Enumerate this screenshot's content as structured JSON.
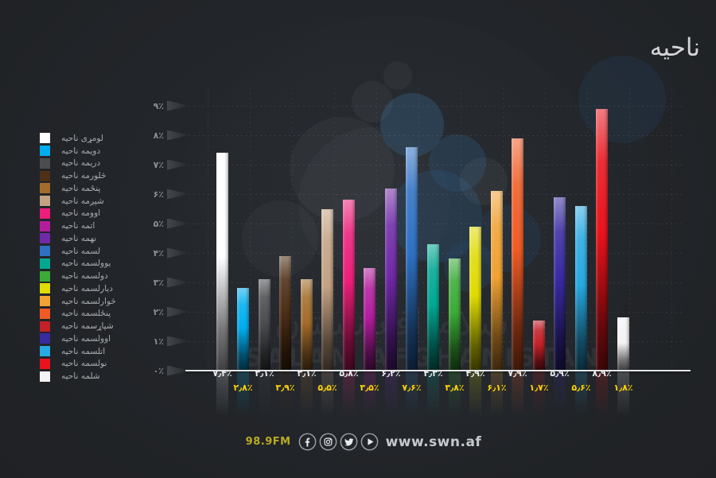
{
  "title": "ناحیه",
  "watermark": {
    "arabic": "سلام افغانستان",
    "latin": "SALAM AFGHANISTAN"
  },
  "footer": {
    "fm": "98.9FM",
    "site": "www.swn.af",
    "icons": [
      "facebook-icon",
      "instagram-icon",
      "twitter-icon",
      "play-icon"
    ]
  },
  "chart_data": {
    "type": "bar",
    "title": "ناحیه",
    "categories": [
      "لومړی ناحیه",
      "دویمه ناحیه",
      "دریمه ناحیه",
      "څلورمه ناحیه",
      "پنځمه ناحیه",
      "شپږمه ناحیه",
      "اوومه ناحیه",
      "اتمه ناحیه",
      "نهمه ناحیه",
      "لسمه ناحیه",
      "یوولسمه ناحیه",
      "دولسمه ناحیه",
      "دیارلسمه ناحیه",
      "څوارلسمه ناحیه",
      "پنځلسمه ناحیه",
      "شپاړسمه ناحیه",
      "اوولسمه ناحیه",
      "اتلسمه ناحیه",
      "نولسمه ناحیه",
      "شلمه ناحیه"
    ],
    "values": [
      7.4,
      2.8,
      3.1,
      3.9,
      3.1,
      5.5,
      5.8,
      3.5,
      6.2,
      7.6,
      4.3,
      3.8,
      4.9,
      6.1,
      7.9,
      1.7,
      5.9,
      5.6,
      8.9,
      1.8
    ],
    "value_labels": [
      "۷٫۴٪",
      "۲٫۸٪",
      "۳٫۱٪",
      "۳٫۹٪",
      "۳٫۱٪",
      "۵٫۵٪",
      "۵٫۸٪",
      "۳٫۵٪",
      "۶٫۲٪",
      "۷٫۶٪",
      "۴٫۳٪",
      "۳٫۸٪",
      "۴٫۹٪",
      "۶٫۱٪",
      "۷٫۹٪",
      "۱٫۷٪",
      "۵٫۹٪",
      "۵٫۶٪",
      "۸٫۹٪",
      "۱٫۸٪"
    ],
    "bar_colors": [
      "#ffffff",
      "#00aeef",
      "#4b4d4f",
      "#4e2f17",
      "#a26c2c",
      "#c3a284",
      "#ec1e79",
      "#b21d9d",
      "#7029a8",
      "#2e70c2",
      "#00a892",
      "#3cab38",
      "#dfdb04",
      "#f0a233",
      "#ef5b24",
      "#c32028",
      "#382a9f",
      "#27a9e1",
      "#e8131b",
      "#f4f4f4"
    ],
    "value_label_colors": {
      "odd_row": "#e9ebed",
      "even_row": "#ffd400"
    },
    "y_tick_labels": [
      "۰٪",
      "۱٪",
      "۲٪",
      "۳٪",
      "۴٪",
      "۵٪",
      "۶٪",
      "۷٪",
      "۸٪",
      "۹٪"
    ],
    "ylim": [
      0,
      9
    ],
    "grid": true,
    "legend_position": "left"
  }
}
